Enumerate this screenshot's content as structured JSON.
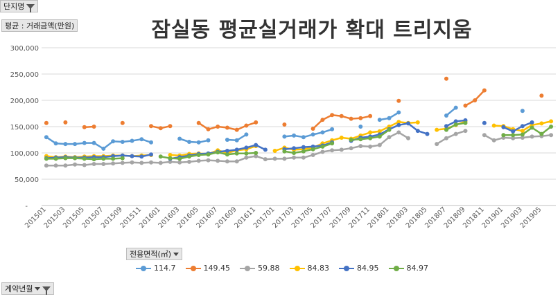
{
  "filters": {
    "complex_name": "단지명",
    "value_field": "평균 : 거래금액(만원)",
    "series_field": "전용면적(㎡)",
    "x_field": "계약년월"
  },
  "chart_data": {
    "type": "line",
    "title": "잠실동 평균실거래가 확대 트리지움",
    "ylim": [
      0,
      300000
    ],
    "y_ticks": [
      "-",
      "50,000",
      "100,000",
      "150,000",
      "200,000",
      "250,000",
      "300,000"
    ],
    "grid": true,
    "legend": "bottom",
    "x": [
      "201501",
      "201502",
      "201503",
      "201504",
      "201505",
      "201506",
      "201507",
      "201508",
      "201509",
      "201510",
      "201511",
      "201512",
      "201601",
      "201602",
      "201603",
      "201604",
      "201605",
      "201606",
      "201607",
      "201608",
      "201609",
      "201610",
      "201611",
      "201612",
      "201701",
      "201702",
      "201703",
      "201704",
      "201705",
      "201706",
      "201707",
      "201708",
      "201709",
      "201710",
      "201711",
      "201712",
      "201801",
      "201802",
      "201803",
      "201804",
      "201805",
      "201806",
      "201807",
      "201808",
      "201809",
      "201810",
      "201811",
      "201812",
      "201901",
      "201902",
      "201903",
      "201904",
      "201905",
      "201906"
    ],
    "x_tick_labels": [
      "201501",
      "201503",
      "201505",
      "201507",
      "201509",
      "201511",
      "201601",
      "201603",
      "201605",
      "201607",
      "201609",
      "201611",
      "201701",
      "201703",
      "201705",
      "201707",
      "201709",
      "201711",
      "201801",
      "201803",
      "201805",
      "201807",
      "201809",
      "201811",
      "201901",
      "201903",
      "201905"
    ],
    "series": [
      {
        "name": "114.7",
        "color": "#5b9bd5",
        "values": [
          130000,
          118000,
          117000,
          117000,
          119000,
          119000,
          108000,
          122000,
          121000,
          123000,
          126000,
          120000,
          null,
          null,
          127000,
          121000,
          120000,
          124000,
          null,
          125000,
          124000,
          135000,
          null,
          null,
          null,
          131000,
          133000,
          130000,
          135000,
          139000,
          145000,
          null,
          null,
          150000,
          null,
          163000,
          166000,
          177000,
          null,
          null,
          null,
          null,
          171000,
          186000,
          null,
          null,
          null,
          null,
          null,
          null,
          180000,
          null,
          null,
          null
        ]
      },
      {
        "name": "149.45",
        "color": "#ed7d31",
        "values": [
          157000,
          null,
          158000,
          null,
          149000,
          150000,
          null,
          null,
          157000,
          null,
          null,
          151000,
          147000,
          151000,
          null,
          null,
          157000,
          145000,
          150000,
          148000,
          144000,
          152000,
          158000,
          null,
          null,
          154000,
          null,
          null,
          146000,
          163000,
          172000,
          170000,
          165000,
          166000,
          170000,
          null,
          null,
          199000,
          null,
          null,
          null,
          null,
          241000,
          null,
          190000,
          200000,
          219000,
          null,
          null,
          null,
          null,
          null,
          209000,
          null
        ]
      },
      {
        "name": "59.88",
        "color": "#a5a5a5",
        "values": [
          76000,
          76000,
          76000,
          78000,
          77000,
          79000,
          79000,
          80000,
          81000,
          82000,
          81000,
          82000,
          81000,
          83000,
          82000,
          83000,
          85000,
          86000,
          85000,
          84000,
          84000,
          91000,
          94000,
          88000,
          89000,
          89000,
          91000,
          91000,
          96000,
          102000,
          105000,
          106000,
          109000,
          113000,
          112000,
          115000,
          130000,
          139000,
          128000,
          null,
          null,
          117000,
          128000,
          136000,
          142000,
          null,
          134000,
          124000,
          129000,
          128000,
          129000,
          131000,
          132000,
          134000
        ]
      },
      {
        "name": "84.83",
        "color": "#ffc000",
        "values": [
          94000,
          92000,
          93000,
          92000,
          93000,
          94000,
          94000,
          95000,
          95000,
          94000,
          95000,
          96000,
          null,
          96000,
          95000,
          98000,
          99000,
          98000,
          105000,
          100000,
          105000,
          107000,
          113000,
          null,
          104000,
          110000,
          106000,
          107000,
          110000,
          118000,
          124000,
          129000,
          127000,
          133000,
          139000,
          141000,
          150000,
          159000,
          157000,
          158000,
          null,
          144000,
          146000,
          153000,
          160000,
          null,
          null,
          152000,
          151000,
          145000,
          142000,
          153000,
          156000,
          160000
        ]
      },
      {
        "name": "84.95",
        "color": "#4472c4",
        "values": [
          90000,
          91000,
          92000,
          91000,
          91000,
          92000,
          92000,
          94000,
          95000,
          94000,
          93000,
          97000,
          null,
          89000,
          92000,
          95000,
          98000,
          99000,
          102000,
          104000,
          106000,
          110000,
          115000,
          106000,
          null,
          107000,
          109000,
          111000,
          112000,
          114000,
          120000,
          null,
          123000,
          129000,
          131000,
          135000,
          145000,
          153000,
          156000,
          142000,
          136000,
          null,
          151000,
          160000,
          162000,
          null,
          157000,
          null,
          149000,
          141000,
          151000,
          158000,
          null,
          null
        ]
      },
      {
        "name": "84.97",
        "color": "#70ad47",
        "values": [
          89000,
          89000,
          90000,
          90000,
          89000,
          88000,
          89000,
          89000,
          90000,
          null,
          null,
          null,
          93000,
          90000,
          89000,
          93000,
          96000,
          97000,
          101000,
          97000,
          99000,
          99000,
          100000,
          null,
          null,
          103000,
          100000,
          103000,
          107000,
          112000,
          118000,
          null,
          125000,
          126000,
          128000,
          131000,
          144000,
          null,
          null,
          null,
          null,
          null,
          144000,
          154000,
          157000,
          null,
          null,
          null,
          134000,
          134000,
          135000,
          148000,
          136000,
          150000
        ]
      }
    ]
  }
}
